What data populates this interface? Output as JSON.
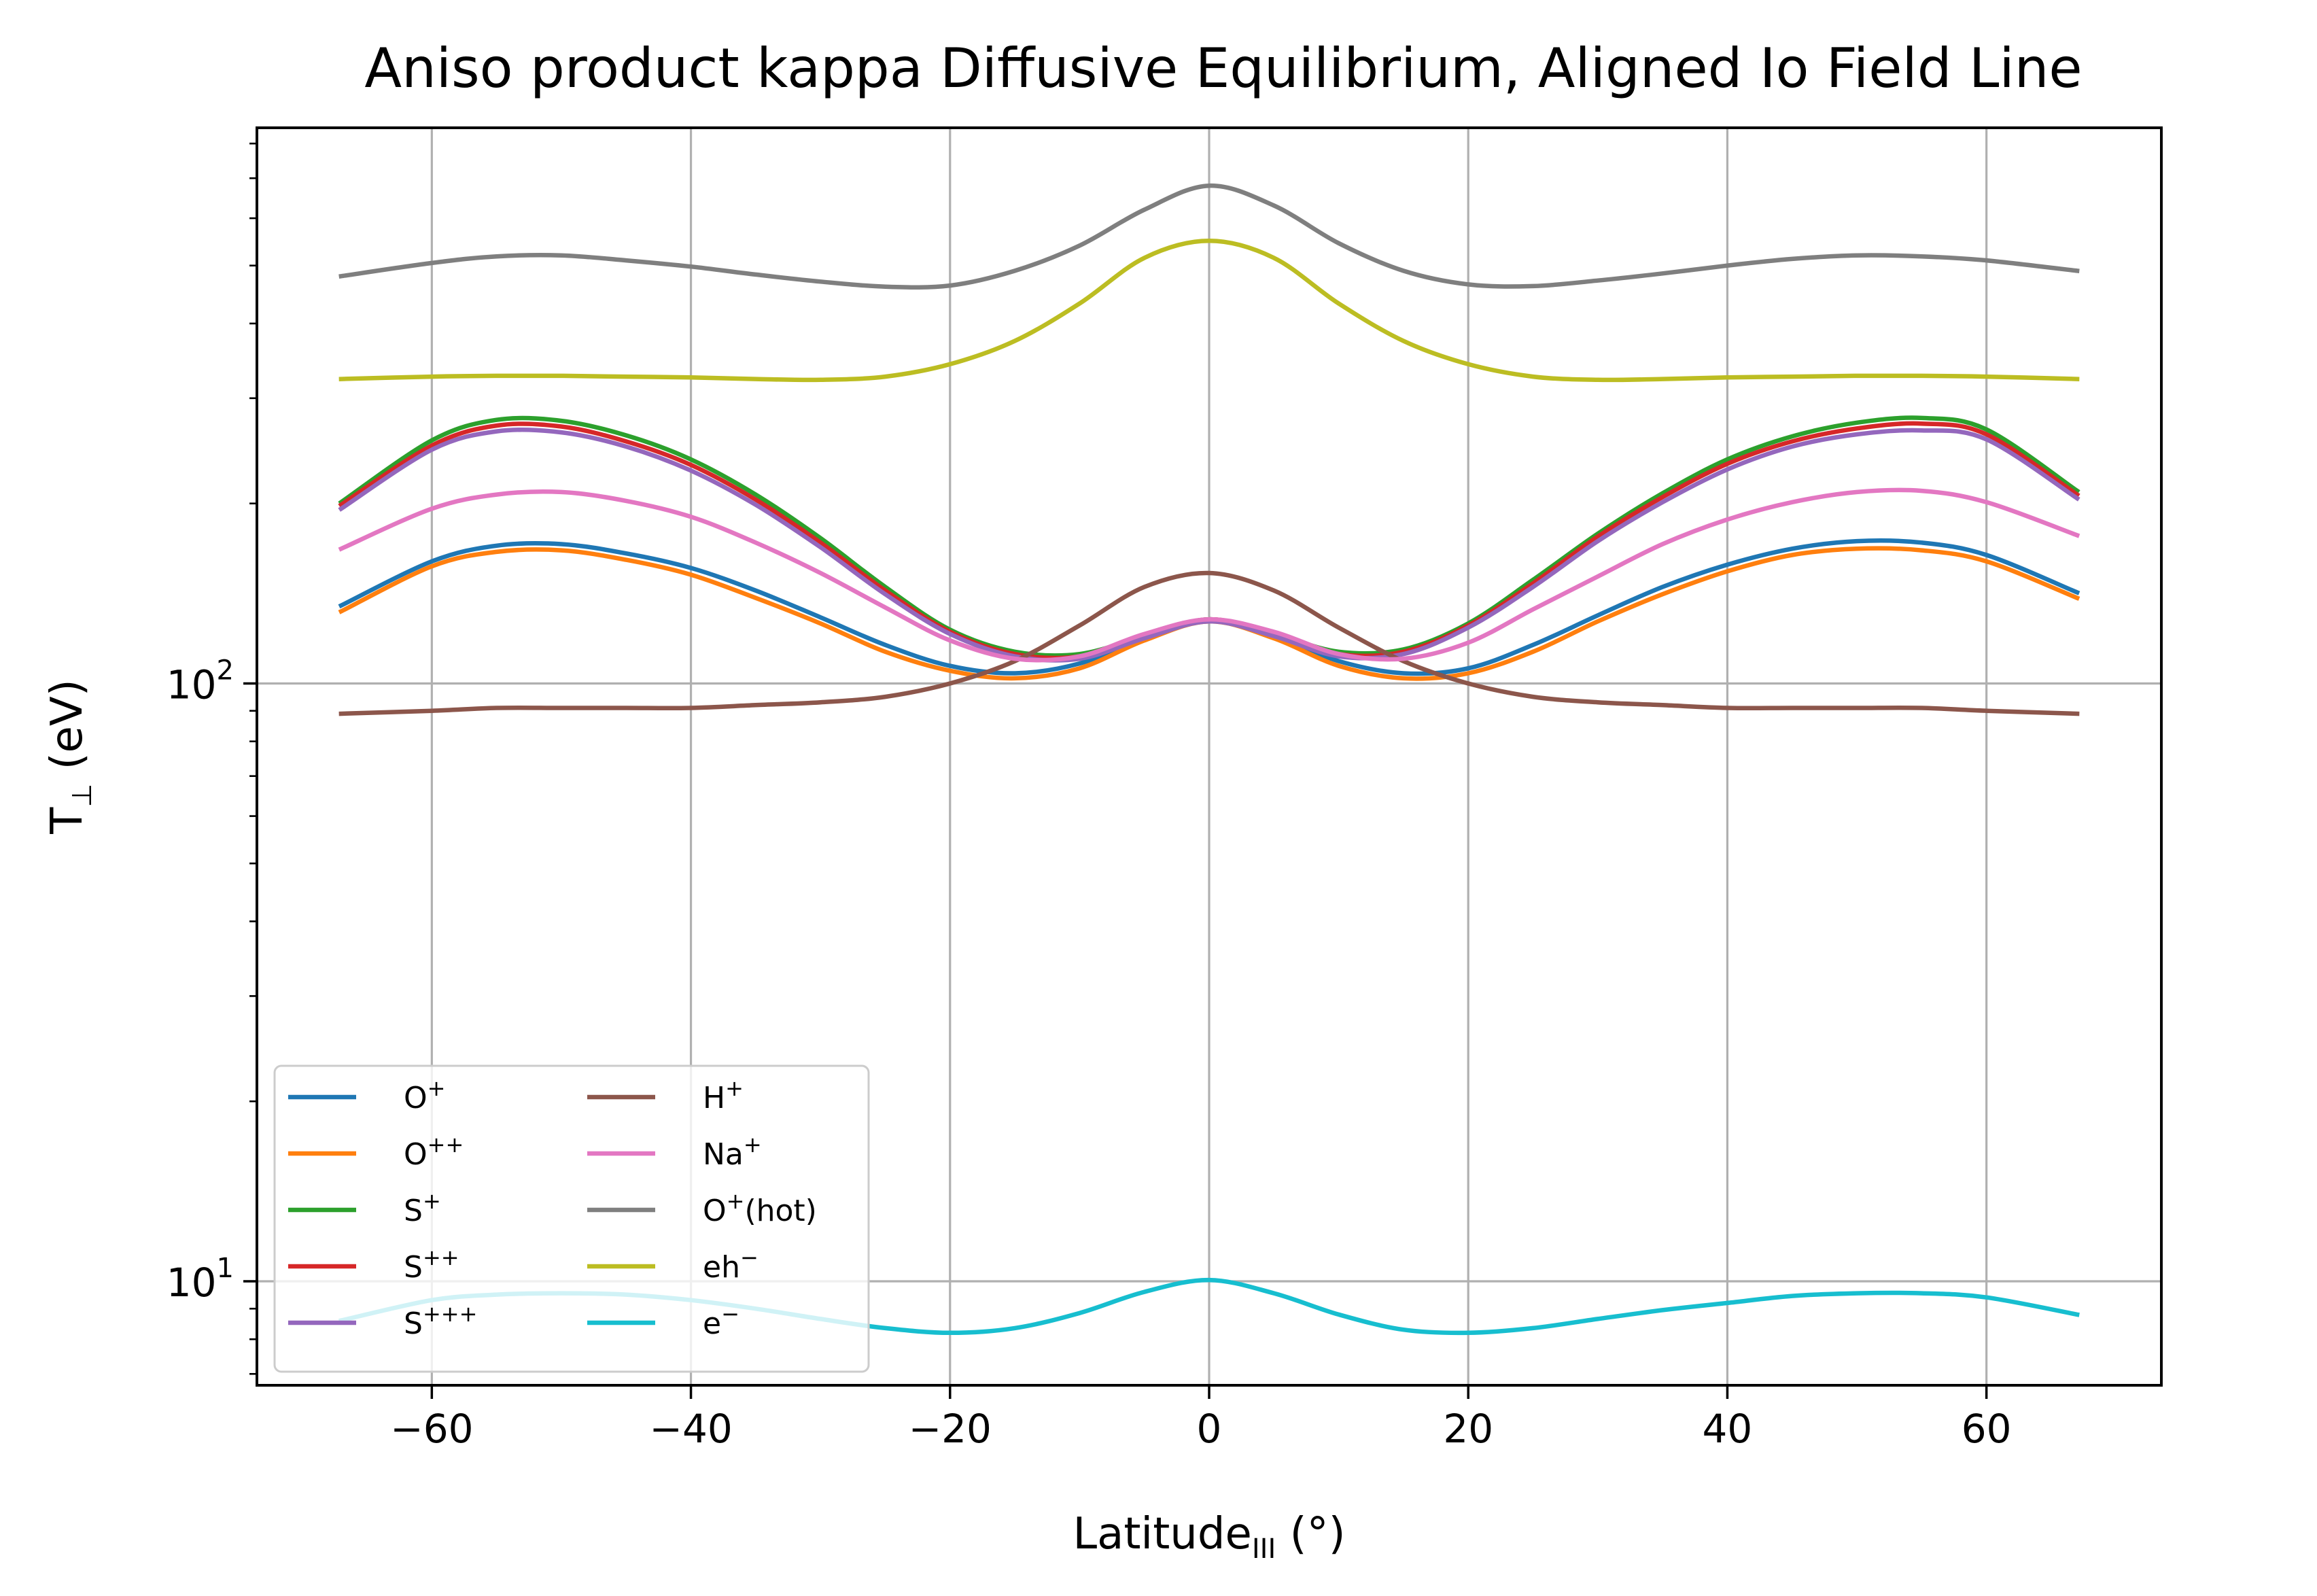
{
  "chart_data": {
    "type": "line",
    "title": "Aniso product kappa Diffusive Equilibrium, Aligned Io Field Line",
    "xlabel": "Latitude",
    "xlabel_sub": "III",
    "xlabel_unit": " (°)",
    "ylabel": "T",
    "ylabel_sub": "⊥",
    "ylabel_unit": " (eV)",
    "xlim": [
      -73.5,
      73.5
    ],
    "ylim": [
      6.7,
      850
    ],
    "yscale": "log",
    "grid": true,
    "legend": {
      "placement": "lower-left",
      "columns": 2
    },
    "x_ticks": [
      {
        "value": -60,
        "label": "−60"
      },
      {
        "value": -40,
        "label": "−40"
      },
      {
        "value": -20,
        "label": "−20"
      },
      {
        "value": 0,
        "label": "0"
      },
      {
        "value": 20,
        "label": "20"
      },
      {
        "value": 40,
        "label": "40"
      },
      {
        "value": 60,
        "label": "60"
      }
    ],
    "y_ticks": [
      {
        "value": 10,
        "base": "10",
        "exp": "1"
      },
      {
        "value": 100,
        "base": "10",
        "exp": "2"
      }
    ],
    "x": [
      -67,
      -60,
      -55,
      -50,
      -45,
      -40,
      -35,
      -30,
      -25,
      -20,
      -15,
      -10,
      -5,
      0,
      5,
      10,
      15,
      20,
      25,
      30,
      35,
      40,
      45,
      50,
      55,
      60,
      67
    ],
    "series": [
      {
        "name": "O",
        "sup": "+",
        "color": "#1f77b4",
        "values": [
          135,
          160,
          170,
          171,
          165,
          156,
          143,
          129,
          116,
          107,
          104,
          108,
          119,
          128,
          120,
          109,
          104,
          106,
          116,
          130,
          145,
          158,
          168,
          173,
          172,
          164,
          142
        ]
      },
      {
        "name": "O",
        "sup": "++",
        "color": "#ff7f0e",
        "values": [
          132,
          157,
          166,
          167,
          161,
          152,
          139,
          126,
          113,
          105,
          102,
          106,
          118,
          127,
          119,
          107,
          102,
          104,
          113,
          127,
          141,
          154,
          164,
          168,
          167,
          160,
          139
        ]
      },
      {
        "name": "S",
        "sup": "+",
        "color": "#2ca02c",
        "values": [
          201,
          255,
          276,
          275,
          260,
          237,
          207,
          175,
          145,
          123,
          113,
          112,
          120,
          128,
          121,
          113,
          114,
          126,
          149,
          178,
          208,
          237,
          259,
          273,
          278,
          266,
          210
        ]
      },
      {
        "name": "S",
        "sup": "++",
        "color": "#d62728",
        "values": [
          199,
          250,
          270,
          269,
          254,
          232,
          203,
          172,
          143,
          122,
          112,
          111,
          120,
          128,
          121,
          112,
          113,
          125,
          147,
          176,
          205,
          233,
          254,
          267,
          272,
          261,
          207
        ]
      },
      {
        "name": "S",
        "sup": "+++",
        "color": "#9467bd",
        "values": [
          196,
          246,
          264,
          263,
          249,
          227,
          199,
          169,
          141,
          121,
          111,
          110,
          119,
          127,
          120,
          111,
          112,
          124,
          145,
          173,
          201,
          228,
          249,
          261,
          265,
          256,
          204
        ]
      },
      {
        "name": "H",
        "sup": "+",
        "color": "#8c564b",
        "values": [
          89,
          90,
          91,
          91,
          91,
          91,
          92,
          93,
          95,
          100,
          109,
          125,
          145,
          153,
          143,
          124,
          109,
          100,
          95,
          93,
          92,
          91,
          91,
          91,
          91,
          90,
          89
        ]
      },
      {
        "name": "Na",
        "sup": "+",
        "color": "#e377c2",
        "values": [
          168,
          196,
          207,
          209,
          202,
          190,
          172,
          153,
          134,
          118,
          110,
          111,
          121,
          128,
          122,
          112,
          110,
          117,
          133,
          151,
          171,
          188,
          201,
          209,
          210,
          201,
          177
        ]
      },
      {
        "name": "O",
        "sup": "+",
        "suffix": "(hot)",
        "color": "#7f7f7f",
        "values": [
          480,
          505,
          518,
          520,
          510,
          498,
          483,
          470,
          461,
          463,
          490,
          540,
          620,
          680,
          630,
          545,
          490,
          465,
          462,
          472,
          485,
          500,
          513,
          520,
          518,
          510,
          490
        ]
      },
      {
        "name": "eh",
        "sup": "−",
        "color": "#bcbd22",
        "values": [
          323,
          326,
          327,
          327,
          326,
          325,
          323,
          322,
          326,
          342,
          374,
          432,
          515,
          550,
          515,
          432,
          374,
          342,
          326,
          322,
          323,
          325,
          326,
          327,
          327,
          326,
          323
        ]
      },
      {
        "name": "e",
        "sup": "−",
        "color": "#17becf",
        "values": [
          8.6,
          9.3,
          9.5,
          9.55,
          9.5,
          9.3,
          9.0,
          8.65,
          8.35,
          8.2,
          8.35,
          8.85,
          9.6,
          10.05,
          9.55,
          8.8,
          8.3,
          8.2,
          8.35,
          8.65,
          8.95,
          9.2,
          9.45,
          9.55,
          9.55,
          9.4,
          8.8
        ]
      }
    ]
  }
}
